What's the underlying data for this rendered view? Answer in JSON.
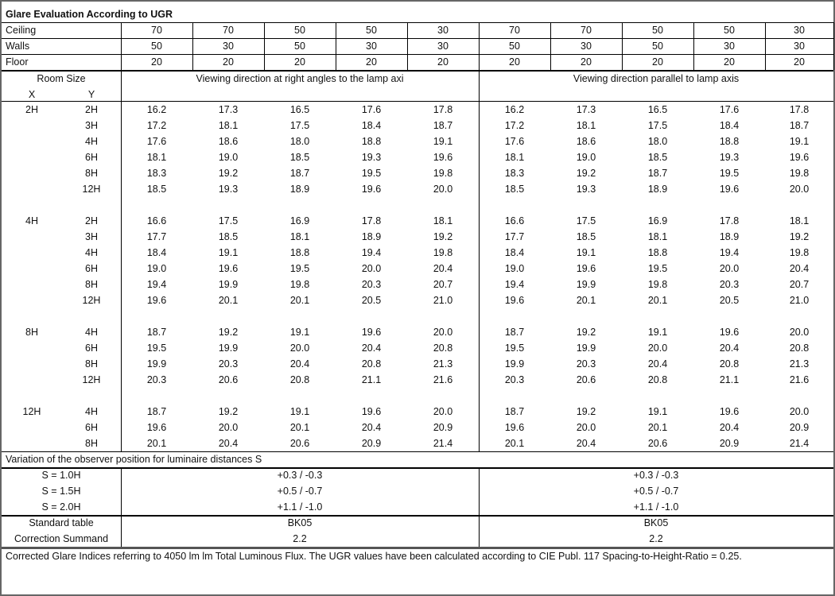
{
  "title": "Glare Evaluation According to UGR",
  "reflectances": [
    {
      "label": "Ceiling",
      "values": [
        "70",
        "70",
        "50",
        "50",
        "30",
        "70",
        "70",
        "50",
        "50",
        "30"
      ]
    },
    {
      "label": "Walls",
      "values": [
        "50",
        "30",
        "50",
        "30",
        "30",
        "50",
        "30",
        "50",
        "30",
        "30"
      ]
    },
    {
      "label": "Floor",
      "values": [
        "20",
        "20",
        "20",
        "20",
        "20",
        "20",
        "20",
        "20",
        "20",
        "20"
      ]
    }
  ],
  "header": {
    "room_size": "Room Size",
    "x": "X",
    "y": "Y",
    "left_direction": "Viewing direction at right angles to the lamp axi",
    "right_direction": "Viewing direction parallel to lamp axis"
  },
  "groups": [
    {
      "x": "2H",
      "rows": [
        {
          "y": "2H",
          "values": [
            "16.2",
            "17.3",
            "16.5",
            "17.6",
            "17.8",
            "16.2",
            "17.3",
            "16.5",
            "17.6",
            "17.8"
          ]
        },
        {
          "y": "3H",
          "values": [
            "17.2",
            "18.1",
            "17.5",
            "18.4",
            "18.7",
            "17.2",
            "18.1",
            "17.5",
            "18.4",
            "18.7"
          ]
        },
        {
          "y": "4H",
          "values": [
            "17.6",
            "18.6",
            "18.0",
            "18.8",
            "19.1",
            "17.6",
            "18.6",
            "18.0",
            "18.8",
            "19.1"
          ]
        },
        {
          "y": "6H",
          "values": [
            "18.1",
            "19.0",
            "18.5",
            "19.3",
            "19.6",
            "18.1",
            "19.0",
            "18.5",
            "19.3",
            "19.6"
          ]
        },
        {
          "y": "8H",
          "values": [
            "18.3",
            "19.2",
            "18.7",
            "19.5",
            "19.8",
            "18.3",
            "19.2",
            "18.7",
            "19.5",
            "19.8"
          ]
        },
        {
          "y": "12H",
          "values": [
            "18.5",
            "19.3",
            "18.9",
            "19.6",
            "20.0",
            "18.5",
            "19.3",
            "18.9",
            "19.6",
            "20.0"
          ]
        }
      ]
    },
    {
      "x": "4H",
      "rows": [
        {
          "y": "2H",
          "values": [
            "16.6",
            "17.5",
            "16.9",
            "17.8",
            "18.1",
            "16.6",
            "17.5",
            "16.9",
            "17.8",
            "18.1"
          ]
        },
        {
          "y": "3H",
          "values": [
            "17.7",
            "18.5",
            "18.1",
            "18.9",
            "19.2",
            "17.7",
            "18.5",
            "18.1",
            "18.9",
            "19.2"
          ]
        },
        {
          "y": "4H",
          "values": [
            "18.4",
            "19.1",
            "18.8",
            "19.4",
            "19.8",
            "18.4",
            "19.1",
            "18.8",
            "19.4",
            "19.8"
          ]
        },
        {
          "y": "6H",
          "values": [
            "19.0",
            "19.6",
            "19.5",
            "20.0",
            "20.4",
            "19.0",
            "19.6",
            "19.5",
            "20.0",
            "20.4"
          ]
        },
        {
          "y": "8H",
          "values": [
            "19.4",
            "19.9",
            "19.8",
            "20.3",
            "20.7",
            "19.4",
            "19.9",
            "19.8",
            "20.3",
            "20.7"
          ]
        },
        {
          "y": "12H",
          "values": [
            "19.6",
            "20.1",
            "20.1",
            "20.5",
            "21.0",
            "19.6",
            "20.1",
            "20.1",
            "20.5",
            "21.0"
          ]
        }
      ]
    },
    {
      "x": "8H",
      "rows": [
        {
          "y": "4H",
          "values": [
            "18.7",
            "19.2",
            "19.1",
            "19.6",
            "20.0",
            "18.7",
            "19.2",
            "19.1",
            "19.6",
            "20.0"
          ]
        },
        {
          "y": "6H",
          "values": [
            "19.5",
            "19.9",
            "20.0",
            "20.4",
            "20.8",
            "19.5",
            "19.9",
            "20.0",
            "20.4",
            "20.8"
          ]
        },
        {
          "y": "8H",
          "values": [
            "19.9",
            "20.3",
            "20.4",
            "20.8",
            "21.3",
            "19.9",
            "20.3",
            "20.4",
            "20.8",
            "21.3"
          ]
        },
        {
          "y": "12H",
          "values": [
            "20.3",
            "20.6",
            "20.8",
            "21.1",
            "21.6",
            "20.3",
            "20.6",
            "20.8",
            "21.1",
            "21.6"
          ]
        }
      ]
    },
    {
      "x": "12H",
      "rows": [
        {
          "y": "4H",
          "values": [
            "18.7",
            "19.2",
            "19.1",
            "19.6",
            "20.0",
            "18.7",
            "19.2",
            "19.1",
            "19.6",
            "20.0"
          ]
        },
        {
          "y": "6H",
          "values": [
            "19.6",
            "20.0",
            "20.1",
            "20.4",
            "20.9",
            "19.6",
            "20.0",
            "20.1",
            "20.4",
            "20.9"
          ]
        },
        {
          "y": "8H",
          "values": [
            "20.1",
            "20.4",
            "20.6",
            "20.9",
            "21.4",
            "20.1",
            "20.4",
            "20.6",
            "20.9",
            "21.4"
          ]
        }
      ]
    }
  ],
  "variation": {
    "title": "Variation of the observer position for luminaire distances S",
    "rows": [
      {
        "label": "S = 1.0H",
        "left": "+0.3 / -0.3",
        "right": "+0.3 / -0.3"
      },
      {
        "label": "S = 1.5H",
        "left": "+0.5 / -0.7",
        "right": "+0.5 / -0.7"
      },
      {
        "label": "S = 2.0H",
        "left": "+1.1 / -1.0",
        "right": "+1.1 / -1.0"
      }
    ]
  },
  "standard": [
    {
      "label": "Standard table",
      "left": "BK05",
      "right": "BK05"
    },
    {
      "label": "Correction Summand",
      "left": "2.2",
      "right": "2.2"
    }
  ],
  "footnote": "Corrected Glare Indices referring to 4050 lm lm Total Luminous Flux. The UGR values have been calculated according to CIE Publ. 117    Spacing-to-Height-Ratio = 0.25."
}
